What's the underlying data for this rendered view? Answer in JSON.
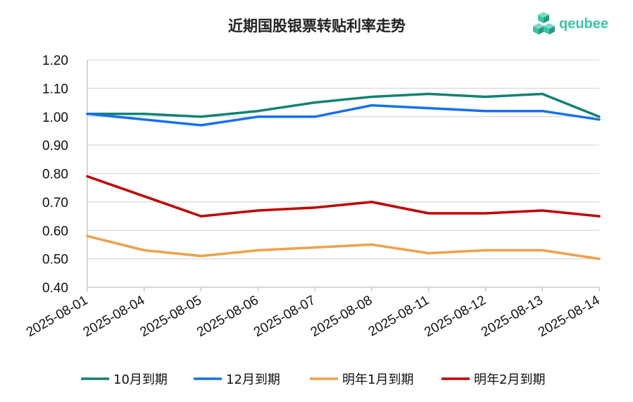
{
  "chart_data": {
    "type": "line",
    "title": "近期国股银票转贴利率走势",
    "xlabel": "",
    "ylabel": "",
    "ylim": [
      0.4,
      1.2
    ],
    "yticks": [
      "0.40",
      "0.50",
      "0.60",
      "0.70",
      "0.80",
      "0.90",
      "1.00",
      "1.10",
      "1.20"
    ],
    "grid": true,
    "legend_position": "bottom",
    "categories": [
      "2025-08-01",
      "2025-08-04",
      "2025-08-05",
      "2025-08-06",
      "2025-08-07",
      "2025-08-08",
      "2025-08-11",
      "2025-08-12",
      "2025-08-13",
      "2025-08-14"
    ],
    "series": [
      {
        "name": "10月到期",
        "color": "#138272",
        "values": [
          1.01,
          1.01,
          1.0,
          1.02,
          1.05,
          1.07,
          1.08,
          1.07,
          1.08,
          1.0
        ]
      },
      {
        "name": "12月到期",
        "color": "#1570EF",
        "values": [
          1.01,
          0.99,
          0.97,
          1.0,
          1.0,
          1.04,
          1.03,
          1.02,
          1.02,
          0.99
        ]
      },
      {
        "name": "明年1月到期",
        "color": "#F0A04B",
        "values": [
          0.58,
          0.53,
          0.51,
          0.53,
          0.54,
          0.55,
          0.52,
          0.53,
          0.53,
          0.5
        ]
      },
      {
        "name": "明年2月到期",
        "color": "#C00000",
        "values": [
          0.79,
          0.72,
          0.65,
          0.67,
          0.68,
          0.7,
          0.66,
          0.66,
          0.67,
          0.65
        ]
      }
    ]
  },
  "brand": {
    "name": "qeubee",
    "color": "#3CC5A5"
  }
}
